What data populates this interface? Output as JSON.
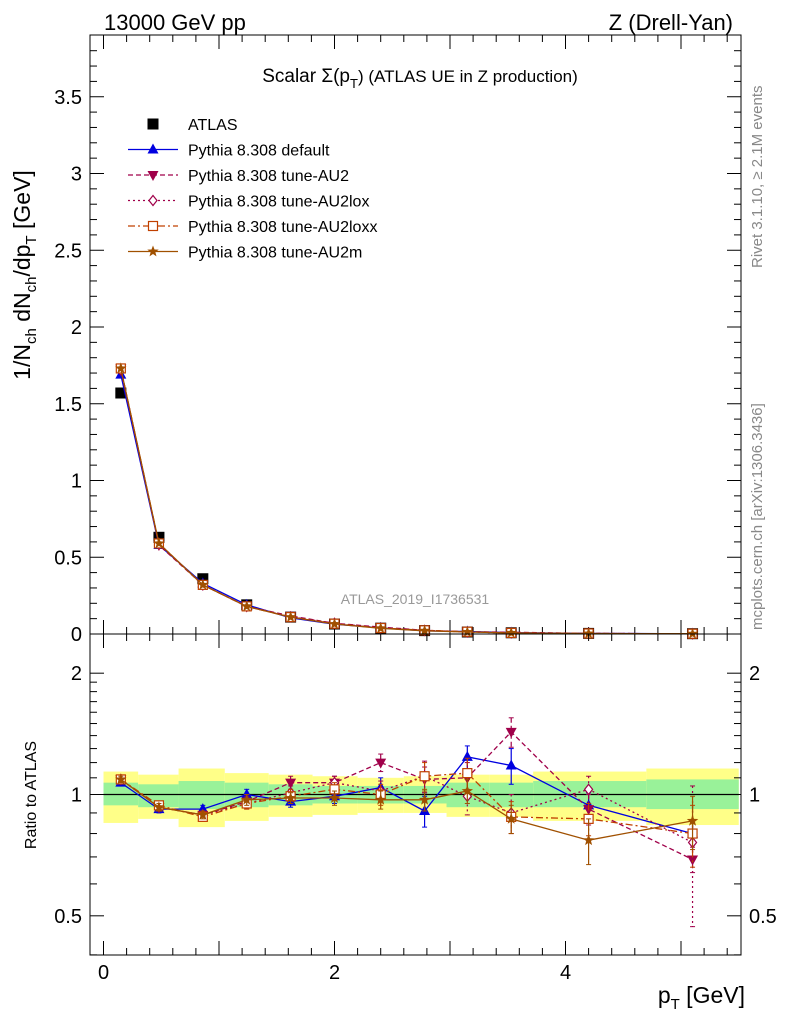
{
  "header": {
    "left": "13000 GeV pp",
    "right": "Z (Drell-Yan)"
  },
  "side_text": {
    "rivet": "Rivet 3.1.10, ≥ 2.1M events",
    "mcplots": "mcplots.cern.ch [arXiv:1306.3436]"
  },
  "watermark": "ATLAS_2019_I1736531",
  "chart_data": [
    {
      "type": "line",
      "panel": "main",
      "title_main": "Scalar Σ(p",
      "title_sub": "T",
      "title_tail": ")  (ATLAS UE in Z production)",
      "ylabel": "1/N",
      "ylabel_parts": [
        "1/N",
        "ch",
        " dN",
        "ch",
        "/dp",
        "T",
        " [GeV]"
      ],
      "xlim": [
        -0.1,
        5.5
      ],
      "ylim": [
        0,
        3.9
      ],
      "yticks": [
        0,
        0.5,
        1,
        1.5,
        2,
        2.5,
        3,
        3.5
      ],
      "ytick_labels": [
        "0",
        "0.5",
        "1",
        "1.5",
        "2",
        "2.5",
        "3",
        "3.5"
      ],
      "x": [
        0.15,
        0.48,
        0.86,
        1.24,
        1.62,
        2.0,
        2.4,
        2.78,
        3.15,
        3.53,
        4.2,
        5.1
      ],
      "series": [
        {
          "name": "ATLAS",
          "color": "#000000",
          "marker": "square",
          "values": [
            1.57,
            0.63,
            0.36,
            0.19,
            0.11,
            0.065,
            0.038,
            0.022,
            0.013,
            0.008,
            0.004,
            0.002
          ]
        },
        {
          "name": "Pythia 8.308 default",
          "color": "#0000e0",
          "marker": "triangle-up",
          "dash": "",
          "values": [
            1.69,
            0.58,
            0.33,
            0.19,
            0.105,
            0.064,
            0.04,
            0.02,
            0.016,
            0.0092,
            0.0038,
            0.0016
          ]
        },
        {
          "name": "Pythia 8.308 tune-AU2",
          "color": "#a0004a",
          "marker": "triangle-down",
          "dash": "5,3",
          "values": [
            1.73,
            0.58,
            0.32,
            0.18,
            0.118,
            0.07,
            0.045,
            0.024,
            0.0145,
            0.0115,
            0.0037,
            0.0014
          ]
        },
        {
          "name": "Pythia 8.308 tune-AU2lox",
          "color": "#a0004a",
          "marker": "diamond-open",
          "dash": "2,3",
          "values": [
            1.72,
            0.59,
            0.32,
            0.18,
            0.112,
            0.07,
            0.039,
            0.024,
            0.0128,
            0.0072,
            0.0042,
            0.0015
          ]
        },
        {
          "name": "Pythia 8.308 tune-AU2loxx",
          "color": "#c04000",
          "marker": "square-open",
          "dash": "7,3,2,3",
          "values": [
            1.73,
            0.59,
            0.32,
            0.18,
            0.11,
            0.067,
            0.039,
            0.024,
            0.0147,
            0.007,
            0.0035,
            0.0016
          ]
        },
        {
          "name": "Pythia 8.308 tune-AU2m",
          "color": "#a05000",
          "marker": "star",
          "dash": "",
          "values": [
            1.73,
            0.59,
            0.32,
            0.18,
            0.11,
            0.065,
            0.037,
            0.021,
            0.0132,
            0.007,
            0.0031,
            0.0017
          ]
        }
      ],
      "legend_position": "top-left"
    },
    {
      "type": "line",
      "panel": "ratio",
      "ylabel": "Ratio to ATLAS",
      "xlabel_main": "p",
      "xlabel_sub": "T",
      "xlabel_tail": " [GeV]",
      "xlim": [
        -0.1,
        5.5
      ],
      "ylim": [
        0.35,
        2.35
      ],
      "yticks": [
        0.5,
        1,
        2
      ],
      "ytick_labels": [
        "0.5",
        "1",
        "2"
      ],
      "xticks": [
        0,
        2,
        4
      ],
      "xtick_labels": [
        "0",
        "2",
        "4"
      ],
      "bins": [
        [
          0.0,
          0.3
        ],
        [
          0.3,
          0.65
        ],
        [
          0.65,
          1.05
        ],
        [
          1.05,
          1.43
        ],
        [
          1.43,
          1.81
        ],
        [
          1.81,
          2.2
        ],
        [
          2.2,
          2.6
        ],
        [
          2.6,
          2.97
        ],
        [
          2.97,
          3.34
        ],
        [
          3.34,
          3.72
        ],
        [
          3.72,
          4.7
        ],
        [
          4.7,
          5.5
        ]
      ],
      "band_stat": [
        [
          0.94,
          1.07
        ],
        [
          0.93,
          1.06
        ],
        [
          0.92,
          1.08
        ],
        [
          0.93,
          1.07
        ],
        [
          0.94,
          1.06
        ],
        [
          0.95,
          1.05
        ],
        [
          0.95,
          1.05
        ],
        [
          0.95,
          1.05
        ],
        [
          0.93,
          1.07
        ],
        [
          0.93,
          1.07
        ],
        [
          0.93,
          1.08
        ],
        [
          0.92,
          1.09
        ]
      ],
      "band_total": [
        [
          0.85,
          1.14
        ],
        [
          0.87,
          1.12
        ],
        [
          0.83,
          1.16
        ],
        [
          0.86,
          1.13
        ],
        [
          0.88,
          1.12
        ],
        [
          0.89,
          1.11
        ],
        [
          0.9,
          1.1
        ],
        [
          0.9,
          1.11
        ],
        [
          0.88,
          1.12
        ],
        [
          0.88,
          1.12
        ],
        [
          0.86,
          1.14
        ],
        [
          0.84,
          1.16
        ]
      ],
      "x": [
        0.15,
        0.48,
        0.86,
        1.24,
        1.62,
        2.0,
        2.4,
        2.78,
        3.15,
        3.53,
        4.2,
        5.1
      ],
      "series": [
        {
          "name": "Pythia 8.308 default",
          "color": "#0000e0",
          "marker": "triangle-up",
          "dash": "",
          "values": [
            1.07,
            0.92,
            0.92,
            1.0,
            0.96,
            0.99,
            1.04,
            0.91,
            1.24,
            1.18,
            0.94,
            0.8
          ],
          "errors": [
            0.02,
            0.02,
            0.02,
            0.03,
            0.03,
            0.04,
            0.06,
            0.08,
            0.08,
            0.12,
            0.07,
            0.05
          ]
        },
        {
          "name": "Pythia 8.308 tune-AU2",
          "color": "#a0004a",
          "marker": "triangle-down",
          "dash": "5,3",
          "values": [
            1.09,
            0.93,
            0.89,
            0.96,
            1.07,
            1.07,
            1.2,
            1.09,
            1.1,
            1.43,
            0.92,
            0.69
          ],
          "errors": [
            0.02,
            0.02,
            0.02,
            0.03,
            0.04,
            0.04,
            0.06,
            0.08,
            0.1,
            0.12,
            0.08,
            0.05
          ]
        },
        {
          "name": "Pythia 8.308 tune-AU2lox",
          "color": "#a0004a",
          "marker": "diamond-open",
          "dash": "2,3",
          "values": [
            1.09,
            0.93,
            0.89,
            0.95,
            1.01,
            1.07,
            1.02,
            1.11,
            0.99,
            0.9,
            1.03,
            0.76
          ],
          "errors": [
            0.02,
            0.02,
            0.02,
            0.03,
            0.04,
            0.04,
            0.06,
            0.1,
            0.1,
            0.1,
            0.08,
            0.29
          ]
        },
        {
          "name": "Pythia 8.308 tune-AU2loxx",
          "color": "#c04000",
          "marker": "square-open",
          "dash": "7,3,2,3",
          "values": [
            1.09,
            0.94,
            0.88,
            0.95,
            0.99,
            1.03,
            1.0,
            1.11,
            1.13,
            0.88,
            0.87,
            0.8
          ],
          "errors": [
            0.02,
            0.02,
            0.02,
            0.03,
            0.04,
            0.04,
            0.06,
            0.09,
            0.1,
            0.08,
            0.08,
            0.14
          ]
        },
        {
          "name": "Pythia 8.308 tune-AU2m",
          "color": "#a05000",
          "marker": "star",
          "dash": "",
          "values": [
            1.09,
            0.93,
            0.89,
            0.97,
            0.98,
            0.98,
            0.97,
            0.97,
            1.02,
            0.87,
            0.77,
            0.86
          ],
          "errors": [
            0.02,
            0.02,
            0.02,
            0.03,
            0.03,
            0.04,
            0.05,
            0.06,
            0.07,
            0.07,
            0.1,
            0.13
          ]
        }
      ]
    }
  ]
}
